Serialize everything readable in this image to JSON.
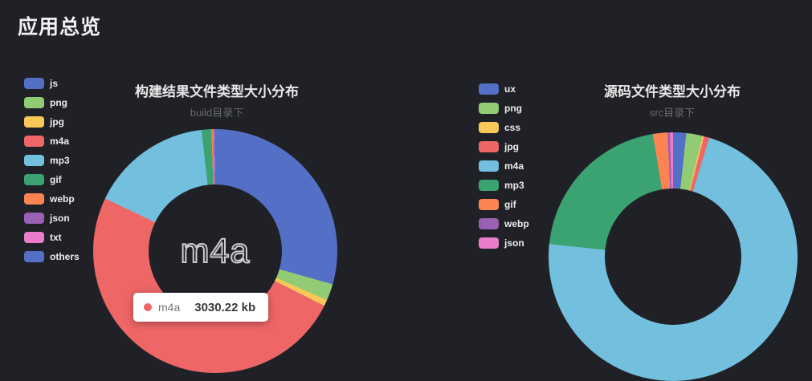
{
  "page": {
    "title": "应用总览"
  },
  "colors": {
    "background": "#1f2126",
    "tooltip_bg": "#ffffff"
  },
  "chart_data": [
    {
      "type": "pie",
      "title": "构建结果文件类型大小分布",
      "subtitle": "build目录下",
      "legend_position": "left",
      "donut": true,
      "start_angle": "top-clockwise",
      "center_label": "m4a",
      "tooltip": {
        "name": "m4a",
        "value": "3030.22 kb",
        "dot_color": "#ee6666"
      },
      "series": [
        {
          "name": "js",
          "color": "#5470c6",
          "percent": 29.4
        },
        {
          "name": "png",
          "color": "#91cc75",
          "percent": 2.2
        },
        {
          "name": "jpg",
          "color": "#fac858",
          "percent": 0.8
        },
        {
          "name": "m4a",
          "color": "#ee6666",
          "percent": 49.7,
          "value_kb": 3030.22
        },
        {
          "name": "mp3",
          "color": "#73c0de",
          "percent": 16.1
        },
        {
          "name": "gif",
          "color": "#3ba272",
          "percent": 1.3
        },
        {
          "name": "webp",
          "color": "#fc8452",
          "percent": 0.2
        },
        {
          "name": "json",
          "color": "#9a60b4",
          "percent": 0.1
        },
        {
          "name": "txt",
          "color": "#ea7ccc",
          "percent": 0.1
        },
        {
          "name": "others",
          "color": "#5470c6",
          "percent": 0.1
        }
      ]
    },
    {
      "type": "pie",
      "title": "源码文件类型大小分布",
      "subtitle": "src目录下",
      "legend_position": "left",
      "donut": true,
      "start_angle": "top-clockwise",
      "series": [
        {
          "name": "ux",
          "color": "#5470c6",
          "percent": 1.7
        },
        {
          "name": "png",
          "color": "#91cc75",
          "percent": 2.1
        },
        {
          "name": "css",
          "color": "#fac858",
          "percent": 0.2
        },
        {
          "name": "jpg",
          "color": "#ee6666",
          "percent": 0.7
        },
        {
          "name": "m4a",
          "color": "#73c0de",
          "percent": 71.9
        },
        {
          "name": "mp3",
          "color": "#3ba272",
          "percent": 20.8
        },
        {
          "name": "gif",
          "color": "#fc8452",
          "percent": 1.9
        },
        {
          "name": "webp",
          "color": "#9a60b4",
          "percent": 0.3
        },
        {
          "name": "json",
          "color": "#ea7ccc",
          "percent": 0.4
        }
      ]
    }
  ]
}
